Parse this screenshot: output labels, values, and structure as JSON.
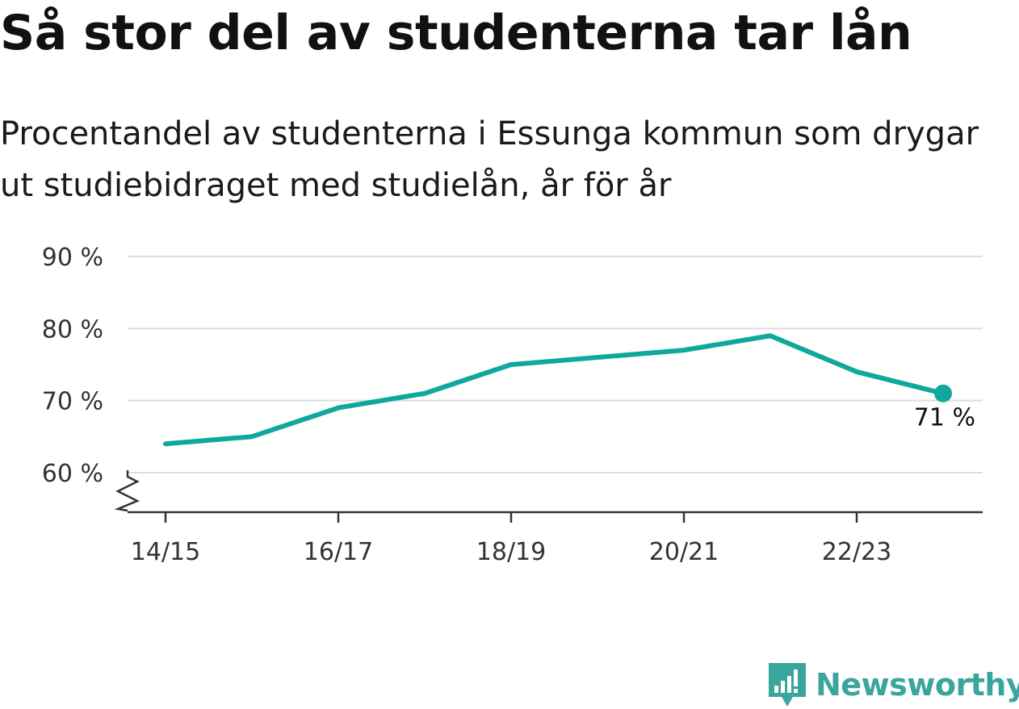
{
  "title": "Så stor del av studenterna tar lån",
  "subtitle": "Procentandel av studenterna i Essunga kommun som drygar ut studiebidraget med studielån, år för år",
  "brand": {
    "name": "Newsworthy",
    "color": "#3aa59c",
    "icon": "newsworthy-logo-icon"
  },
  "colors": {
    "line": "#0ea89c",
    "grid": "#dddddd",
    "axis": "#333333"
  },
  "chart_data": {
    "type": "line",
    "title": "Så stor del av studenterna tar lån",
    "subtitle": "Procentandel av studenterna i Essunga kommun som drygar ut studiebidraget med studielån, år för år",
    "x": [
      "14/15",
      "15/16",
      "16/17",
      "17/18",
      "18/19",
      "19/20",
      "20/21",
      "21/22",
      "22/23",
      "23/24"
    ],
    "series": [
      {
        "values": [
          64,
          65,
          69,
          71,
          75,
          76,
          77,
          79,
          74,
          71
        ]
      }
    ],
    "x_tick_labels": [
      "14/15",
      "16/17",
      "18/19",
      "20/21",
      "22/23"
    ],
    "y_ticks": [
      60,
      70,
      80,
      90
    ],
    "y_tick_labels": [
      "60 %",
      "70 %",
      "80 %",
      "90 %"
    ],
    "ylim": [
      60,
      90
    ],
    "y_axis_break": true,
    "grid": true,
    "end_label": "71 %",
    "legend": "none"
  }
}
